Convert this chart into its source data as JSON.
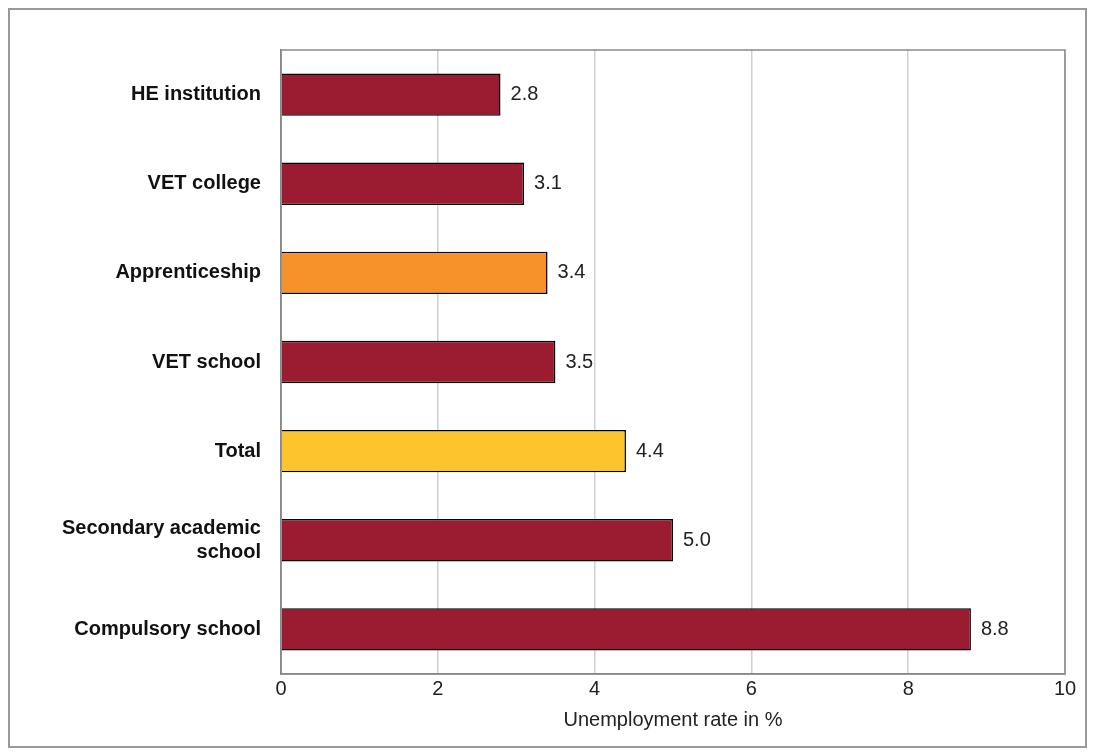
{
  "chart_data": {
    "type": "bar",
    "orientation": "horizontal",
    "xlabel": "Unemployment rate in %",
    "categories": [
      "HE institution",
      "VET college",
      "Apprenticeship",
      "VET school",
      "Total",
      "Secondary academic school",
      "Compulsory school"
    ],
    "values": [
      2.8,
      3.1,
      3.4,
      3.5,
      4.4,
      5.0,
      8.8
    ],
    "colors": [
      "#9b1c31",
      "#9b1c31",
      "#f7922a",
      "#9b1c31",
      "#fdc52c",
      "#9b1c31",
      "#9b1c31"
    ],
    "value_labels": [
      "2.8",
      "3.1",
      "3.4",
      "3.5",
      "4.4",
      "5.0",
      "8.8"
    ],
    "xlim": [
      0,
      10
    ],
    "xticks": [
      0,
      2,
      4,
      6,
      8,
      10
    ],
    "grid": "x",
    "legend": false
  }
}
